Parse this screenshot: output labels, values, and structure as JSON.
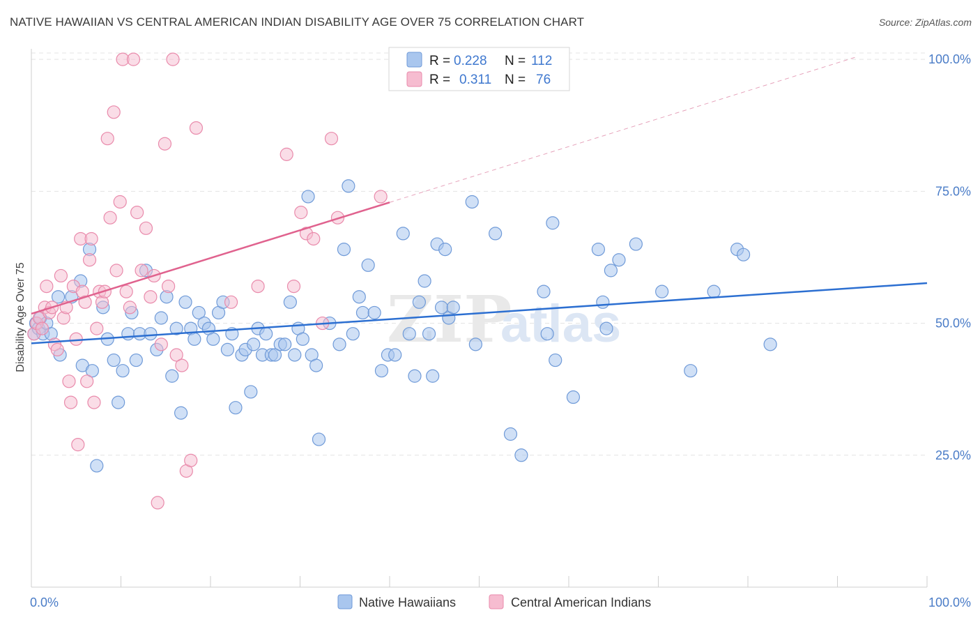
{
  "title": "NATIVE HAWAIIAN VS CENTRAL AMERICAN INDIAN DISABILITY AGE OVER 75 CORRELATION CHART",
  "source": "Source: ZipAtlas.com",
  "watermark": {
    "zip": "ZIP",
    "atlas": "atlas"
  },
  "colors": {
    "blue_fill": "#a9c6ee",
    "blue_stroke": "#6f9ad8",
    "blue_line": "#2c6fd1",
    "pink_fill": "#f6bcd0",
    "pink_stroke": "#e98aab",
    "pink_line": "#e0628e",
    "grid": "#e3e3e3",
    "tick_label": "#4a7cc7"
  },
  "chart_data": {
    "type": "scatter",
    "title": "NATIVE HAWAIIAN VS CENTRAL AMERICAN INDIAN DISABILITY AGE OVER 75 CORRELATION CHART",
    "xlabel": "",
    "ylabel": "Disability Age Over 75",
    "xlim": [
      0,
      100
    ],
    "ylim": [
      0,
      102
    ],
    "y_ticks": [
      25,
      50,
      75,
      100
    ],
    "y_tick_labels": [
      "25.0%",
      "50.0%",
      "75.0%",
      "100.0%"
    ],
    "x_tick_labels": [
      "0.0%",
      "100.0%"
    ],
    "legend": {
      "placement": "top-center",
      "rows": [
        {
          "r_label": "R = ",
          "r_value": "0.228",
          "n_label": "N = ",
          "n_value": "112"
        },
        {
          "r_label": "R = ",
          "r_value": "0.311",
          "n_label": "N = ",
          "n_value": "76"
        }
      ]
    },
    "series": [
      {
        "name": "Native Hawaiians",
        "trend": {
          "x0": 0,
          "y0": 46.2,
          "x1": 100,
          "y1": 57.6
        },
        "points": [
          [
            0.3,
            48
          ],
          [
            0.5,
            50
          ],
          [
            0.8,
            49
          ],
          [
            1.0,
            51
          ],
          [
            1.3,
            48
          ],
          [
            1.7,
            50
          ],
          [
            2.2,
            48
          ],
          [
            3.0,
            55
          ],
          [
            3.2,
            44
          ],
          [
            4.5,
            55
          ],
          [
            5.5,
            58
          ],
          [
            5.7,
            42
          ],
          [
            6.5,
            64
          ],
          [
            6.8,
            41
          ],
          [
            7.3,
            23
          ],
          [
            8.0,
            53
          ],
          [
            8.5,
            47
          ],
          [
            9.2,
            43
          ],
          [
            9.7,
            35
          ],
          [
            10.2,
            41
          ],
          [
            10.8,
            48
          ],
          [
            11.2,
            52
          ],
          [
            11.7,
            43
          ],
          [
            12.1,
            48
          ],
          [
            12.8,
            60
          ],
          [
            13.3,
            48
          ],
          [
            14.0,
            45
          ],
          [
            14.5,
            51
          ],
          [
            15.1,
            55
          ],
          [
            15.7,
            40
          ],
          [
            16.2,
            49
          ],
          [
            16.7,
            33
          ],
          [
            17.2,
            54
          ],
          [
            17.8,
            49
          ],
          [
            18.2,
            47
          ],
          [
            18.7,
            52
          ],
          [
            19.3,
            50
          ],
          [
            19.8,
            49
          ],
          [
            20.3,
            47
          ],
          [
            20.9,
            52
          ],
          [
            21.4,
            54
          ],
          [
            21.9,
            45
          ],
          [
            22.4,
            48
          ],
          [
            22.8,
            34
          ],
          [
            23.5,
            44
          ],
          [
            23.9,
            45
          ],
          [
            24.5,
            37
          ],
          [
            24.8,
            46
          ],
          [
            25.3,
            49
          ],
          [
            25.8,
            44
          ],
          [
            26.2,
            48
          ],
          [
            26.8,
            44
          ],
          [
            27.2,
            44
          ],
          [
            27.8,
            46
          ],
          [
            28.3,
            46
          ],
          [
            28.9,
            54
          ],
          [
            29.4,
            44
          ],
          [
            29.8,
            49
          ],
          [
            30.3,
            47
          ],
          [
            30.9,
            74
          ],
          [
            31.3,
            44
          ],
          [
            31.8,
            42
          ],
          [
            32.1,
            28
          ],
          [
            33.3,
            50
          ],
          [
            34.4,
            46
          ],
          [
            34.9,
            64
          ],
          [
            35.4,
            76
          ],
          [
            35.9,
            48
          ],
          [
            36.6,
            55
          ],
          [
            37.0,
            52
          ],
          [
            37.6,
            61
          ],
          [
            38.3,
            52
          ],
          [
            39.1,
            41
          ],
          [
            39.8,
            44
          ],
          [
            40.6,
            44
          ],
          [
            41.5,
            67
          ],
          [
            42.2,
            48
          ],
          [
            42.8,
            40
          ],
          [
            43.3,
            54
          ],
          [
            43.9,
            58
          ],
          [
            44.4,
            48
          ],
          [
            44.8,
            40
          ],
          [
            45.3,
            65
          ],
          [
            45.8,
            53
          ],
          [
            46.2,
            64
          ],
          [
            46.6,
            51
          ],
          [
            47.1,
            53
          ],
          [
            49.2,
            73
          ],
          [
            49.6,
            46
          ],
          [
            51.8,
            67
          ],
          [
            53.5,
            29
          ],
          [
            54.7,
            25
          ],
          [
            57.2,
            56
          ],
          [
            57.6,
            48
          ],
          [
            58.2,
            69
          ],
          [
            58.5,
            43
          ],
          [
            60.5,
            36
          ],
          [
            63.3,
            64
          ],
          [
            63.8,
            54
          ],
          [
            64.2,
            49
          ],
          [
            64.7,
            60
          ],
          [
            65.6,
            62
          ],
          [
            67.5,
            65
          ],
          [
            70.4,
            56
          ],
          [
            73.6,
            41
          ],
          [
            76.2,
            56
          ],
          [
            78.8,
            64
          ],
          [
            79.5,
            63
          ],
          [
            82.5,
            46
          ]
        ]
      },
      {
        "name": "Central American Indians",
        "trend": {
          "x0": 0,
          "y0": 51.8,
          "x1": 40.0,
          "y1": 72.9
        },
        "trend_dashed": {
          "x0": 40.0,
          "y0": 72.9,
          "x1": 92.0,
          "y1": 100.4
        },
        "points": [
          [
            0.3,
            48
          ],
          [
            0.6,
            50
          ],
          [
            0.9,
            51
          ],
          [
            1.2,
            49
          ],
          [
            1.5,
            53
          ],
          [
            1.7,
            57
          ],
          [
            2.0,
            52
          ],
          [
            2.3,
            53
          ],
          [
            2.6,
            46
          ],
          [
            2.9,
            45
          ],
          [
            3.3,
            59
          ],
          [
            3.6,
            51
          ],
          [
            3.9,
            53
          ],
          [
            4.2,
            39
          ],
          [
            4.4,
            35
          ],
          [
            4.7,
            57
          ],
          [
            5.0,
            47
          ],
          [
            5.2,
            27
          ],
          [
            5.5,
            66
          ],
          [
            5.7,
            56
          ],
          [
            6.0,
            54
          ],
          [
            6.2,
            39
          ],
          [
            6.5,
            62
          ],
          [
            6.7,
            66
          ],
          [
            7.0,
            35
          ],
          [
            7.3,
            49
          ],
          [
            7.6,
            56
          ],
          [
            7.9,
            54
          ],
          [
            8.2,
            56
          ],
          [
            8.5,
            85
          ],
          [
            8.8,
            70
          ],
          [
            9.2,
            90
          ],
          [
            9.5,
            60
          ],
          [
            9.9,
            73
          ],
          [
            10.2,
            100
          ],
          [
            10.6,
            56
          ],
          [
            11.0,
            53
          ],
          [
            11.4,
            100
          ],
          [
            11.8,
            71
          ],
          [
            12.3,
            60
          ],
          [
            12.8,
            68
          ],
          [
            13.3,
            55
          ],
          [
            13.7,
            59
          ],
          [
            14.1,
            16
          ],
          [
            14.5,
            46
          ],
          [
            14.9,
            84
          ],
          [
            15.3,
            57
          ],
          [
            15.8,
            100
          ],
          [
            16.2,
            44
          ],
          [
            16.8,
            42
          ],
          [
            17.3,
            22
          ],
          [
            17.8,
            24
          ],
          [
            18.4,
            87
          ],
          [
            22.3,
            54
          ],
          [
            25.3,
            57
          ],
          [
            28.5,
            82
          ],
          [
            29.3,
            57
          ],
          [
            30.1,
            71
          ],
          [
            30.7,
            67
          ],
          [
            31.5,
            66
          ],
          [
            32.5,
            50
          ],
          [
            33.5,
            85
          ],
          [
            34.2,
            70
          ],
          [
            39.0,
            74
          ]
        ]
      }
    ]
  },
  "bottom_legend": {
    "series1": "Native Hawaiians",
    "series2": "Central American Indians"
  }
}
